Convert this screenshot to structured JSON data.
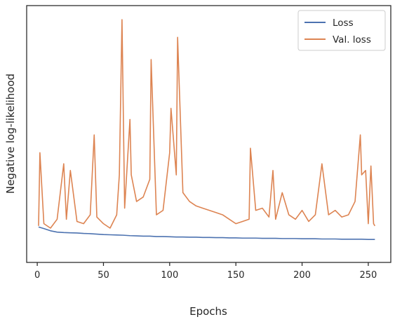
{
  "chart_data": {
    "type": "line",
    "title": "",
    "xlabel": "Epochs",
    "ylabel": "Negative log-likelihood",
    "xlim": [
      -8,
      267
    ],
    "ylim": [
      0,
      100
    ],
    "xticks": [
      0,
      50,
      100,
      150,
      200,
      250
    ],
    "yticks_shown": false,
    "grid": false,
    "legend_position": "top-right",
    "series": [
      {
        "name": "Loss",
        "color": "#4c72b0",
        "x": [
          1,
          5,
          10,
          15,
          20,
          25,
          30,
          35,
          40,
          45,
          50,
          55,
          60,
          65,
          70,
          75,
          80,
          85,
          90,
          95,
          100,
          105,
          110,
          115,
          120,
          125,
          130,
          135,
          140,
          145,
          150,
          155,
          160,
          165,
          170,
          175,
          180,
          185,
          190,
          195,
          200,
          205,
          210,
          215,
          220,
          225,
          230,
          235,
          240,
          245,
          250,
          255
        ],
        "values": [
          6.5,
          5.8,
          4.8,
          4.2,
          4.0,
          3.9,
          3.8,
          3.6,
          3.5,
          3.3,
          3.1,
          3.0,
          2.9,
          2.8,
          2.6,
          2.5,
          2.4,
          2.4,
          2.2,
          2.2,
          2.1,
          2.0,
          2.0,
          1.9,
          1.9,
          1.8,
          1.8,
          1.7,
          1.7,
          1.6,
          1.6,
          1.5,
          1.5,
          1.5,
          1.4,
          1.4,
          1.4,
          1.3,
          1.3,
          1.3,
          1.2,
          1.2,
          1.2,
          1.1,
          1.1,
          1.1,
          1.0,
          1.0,
          1.0,
          1.0,
          0.9,
          0.9
        ]
      },
      {
        "name": "Val. loss",
        "color": "#dd8452",
        "x": [
          1,
          2,
          5,
          10,
          15,
          20,
          22,
          25,
          30,
          35,
          40,
          43,
          45,
          50,
          55,
          60,
          62,
          64,
          66,
          70,
          71,
          75,
          80,
          85,
          86,
          90,
          95,
          100,
          101,
          105,
          106,
          110,
          115,
          120,
          125,
          130,
          135,
          140,
          145,
          150,
          155,
          160,
          161,
          165,
          170,
          175,
          178,
          180,
          185,
          190,
          195,
          200,
          205,
          210,
          215,
          220,
          225,
          230,
          235,
          240,
          244,
          245,
          248,
          250,
          252,
          254,
          255
        ],
        "values": [
          7,
          40,
          8,
          6,
          10,
          35,
          10,
          32,
          9,
          8,
          12,
          48,
          11,
          8,
          6,
          12,
          30,
          100,
          15,
          55,
          30,
          18,
          20,
          28,
          82,
          12,
          14,
          40,
          60,
          30,
          92,
          22,
          18,
          16,
          15,
          14,
          13,
          12,
          10,
          8,
          9,
          10,
          42,
          14,
          15,
          11,
          32,
          10,
          22,
          12,
          10,
          14,
          9,
          12,
          35,
          12,
          14,
          11,
          12,
          18,
          48,
          30,
          32,
          8,
          34,
          8,
          7
        ]
      }
    ],
    "notes": "Validation loss is highly spiky; loss decreases smoothly. Y tick labels not shown."
  }
}
